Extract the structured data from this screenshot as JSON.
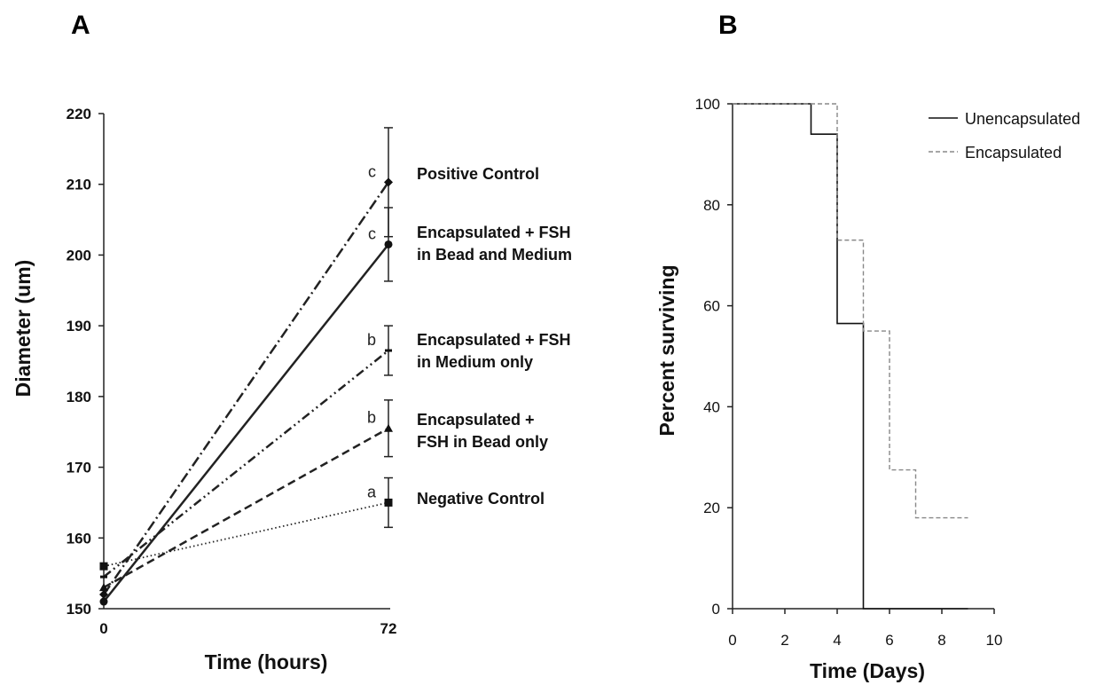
{
  "panels": {
    "a_letter": "A",
    "b_letter": "B"
  },
  "chart_data": [
    {
      "panel": "A",
      "type": "line",
      "title": "",
      "xlabel": "Time (hours)",
      "ylabel": "Diameter (um)",
      "x": [
        0,
        72
      ],
      "x_ticks": [
        "0",
        "72"
      ],
      "ylim": [
        150,
        220
      ],
      "y_ticks": [
        150,
        160,
        170,
        180,
        190,
        200,
        210,
        220
      ],
      "grid": false,
      "series": [
        {
          "name": "Positive Control",
          "name_lines": [
            "Positive Control"
          ],
          "values": [
            152,
            210.3
          ],
          "error_72": 7.7,
          "sig": "c",
          "marker": "diamond",
          "dash": "dash-dot"
        },
        {
          "name": "Encapsulated + FSH in Bead and Medium",
          "name_lines": [
            "Encapsulated + FSH",
            "in Bead and Medium"
          ],
          "values": [
            151,
            201.5
          ],
          "error_72": 5.2,
          "sig": "c",
          "marker": "circle",
          "dash": "solid"
        },
        {
          "name": "Encapsulated + FSH in Medium only",
          "name_lines": [
            "Encapsulated + FSH",
            "in Medium only"
          ],
          "values": [
            154.5,
            186.5
          ],
          "error_72": 3.5,
          "sig": "b",
          "marker": "bar",
          "dash": "dash-dot-dot"
        },
        {
          "name": "Encapsulated + FSH in Bead only",
          "name_lines": [
            "Encapsulated +",
            "FSH in Bead only"
          ],
          "values": [
            153,
            175.5
          ],
          "error_72": 4.0,
          "sig": "b",
          "marker": "triangle",
          "dash": "dashed"
        },
        {
          "name": "Negative Control",
          "name_lines": [
            "Negative Control"
          ],
          "values": [
            156,
            165
          ],
          "error_72": 3.5,
          "sig": "a",
          "marker": "square",
          "dash": "dotted"
        }
      ]
    },
    {
      "panel": "B",
      "type": "line",
      "title": "",
      "xlabel": "Time (Days)",
      "ylabel": "Percent surviving",
      "xlim": [
        0,
        10
      ],
      "x_ticks": [
        0,
        2,
        4,
        6,
        8,
        10
      ],
      "ylim": [
        0,
        100
      ],
      "y_ticks": [
        0,
        20,
        40,
        60,
        80,
        100
      ],
      "grid": false,
      "legend": "top-right",
      "series": [
        {
          "name": "Unencapsulated",
          "dash": "solid",
          "color": "#111111",
          "steps": [
            [
              0,
              100
            ],
            [
              3,
              94
            ],
            [
              4,
              56.5
            ],
            [
              5,
              0
            ],
            [
              9,
              0
            ]
          ]
        },
        {
          "name": "Encapsulated",
          "dash": "dashed",
          "color": "#888888",
          "steps": [
            [
              0,
              100
            ],
            [
              4,
              73
            ],
            [
              5,
              55
            ],
            [
              6,
              27.5
            ],
            [
              7,
              18
            ],
            [
              9,
              18
            ]
          ]
        }
      ]
    }
  ]
}
